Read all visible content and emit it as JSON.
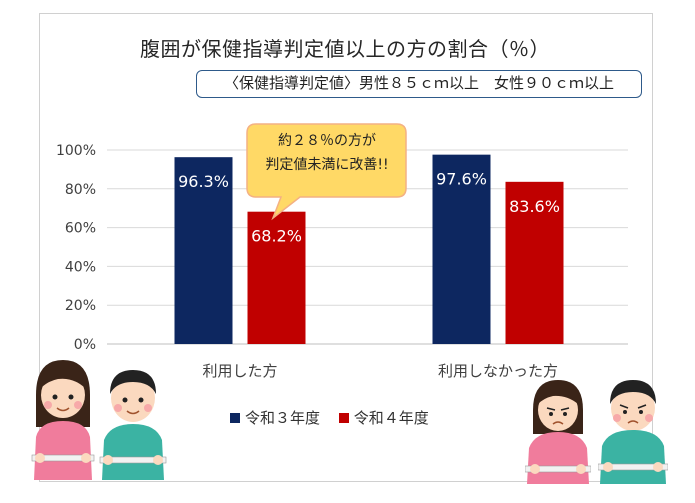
{
  "chart_data": {
    "type": "bar",
    "title": "腹囲が保健指導判定値以上の方の割合（％）",
    "note": "〈保健指導判定値〉男性８５ｃｍ以上　女性９０ｃｍ以上",
    "categories": [
      "利用した方",
      "利用しなかった方"
    ],
    "series": [
      {
        "name": "令和３年度",
        "values": [
          96.3,
          97.6
        ],
        "labels": [
          "96.3%",
          "97.6%"
        ],
        "color": "#0d2760"
      },
      {
        "name": "令和４年度",
        "values": [
          68.2,
          83.6
        ],
        "labels": [
          "68.2%",
          "83.6%"
        ],
        "color": "#c00000"
      }
    ],
    "yticks": [
      "100%",
      "80%",
      "60%",
      "40%",
      "20%",
      "0%"
    ],
    "ylim": [
      0,
      100
    ],
    "grid": true,
    "legend_position": "bottom",
    "annotation": {
      "line1": "約２８％の方が",
      "line2": "判定値未満に改善!!",
      "color": "#ffd966"
    }
  },
  "icons": {
    "left_pair": "woman-and-man-measuring-waist-icon",
    "right_pair": "worried-woman-and-man-measuring-waist-icon"
  }
}
